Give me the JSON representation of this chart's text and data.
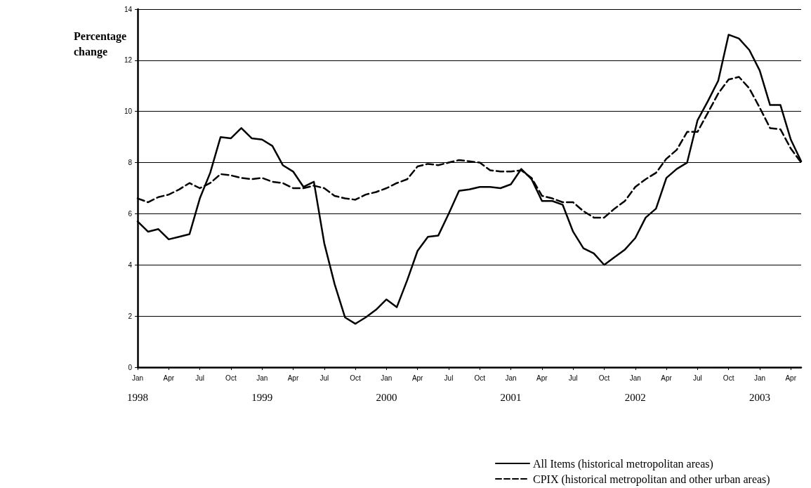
{
  "chart_data": {
    "type": "line",
    "ylabel": "Percentage change",
    "categories": [
      "Jan\n1998",
      null,
      null,
      "Apr",
      null,
      null,
      "Jul",
      null,
      null,
      "Oct",
      null,
      null,
      "Jan\n1999",
      null,
      null,
      "Apr",
      null,
      null,
      "Jul",
      null,
      null,
      "Oct",
      null,
      null,
      "Jan\n2000",
      null,
      null,
      "Apr",
      null,
      null,
      "Jul",
      null,
      null,
      "Oct",
      null,
      null,
      "Jan\n2001",
      null,
      null,
      "Apr",
      null,
      null,
      "Jul",
      null,
      null,
      "Oct",
      null,
      null,
      "Jan\n2002",
      null,
      null,
      "Apr",
      null,
      null,
      "Jul",
      null,
      null,
      "Oct",
      null,
      null,
      "Jan\n2003",
      null,
      null,
      "Apr",
      null
    ],
    "series": [
      {
        "name": "All Items (historical metropolitan areas)",
        "color": "#000000",
        "line_style": "solid",
        "values": [
          5.7,
          5.3,
          5.4,
          5.0,
          5.1,
          5.2,
          6.6,
          7.6,
          9.0,
          8.95,
          9.35,
          8.95,
          8.9,
          8.65,
          7.9,
          7.65,
          7.05,
          7.25,
          4.85,
          3.25,
          1.95,
          1.7,
          1.95,
          2.25,
          2.65,
          2.35,
          3.4,
          4.55,
          5.1,
          5.15,
          6.0,
          6.9,
          6.95,
          7.05,
          7.05,
          7.0,
          7.15,
          7.75,
          7.35,
          6.5,
          6.5,
          6.35,
          5.3,
          4.65,
          4.45,
          4.0,
          4.3,
          4.6,
          5.05,
          5.85,
          6.2,
          7.4,
          7.75,
          8.0,
          9.65,
          10.4,
          11.2,
          13.0,
          12.85,
          12.4,
          11.6,
          10.25,
          10.25,
          8.9,
          8.05
        ]
      },
      {
        "name": "CPIX (historical metropolitan and other urban areas)",
        "color": "#000000",
        "line_style": "dashed",
        "values": [
          6.6,
          6.45,
          6.65,
          6.75,
          6.95,
          7.2,
          7.0,
          7.2,
          7.55,
          7.5,
          7.4,
          7.35,
          7.4,
          7.25,
          7.2,
          7.0,
          7.0,
          7.1,
          7.0,
          6.7,
          6.6,
          6.55,
          6.75,
          6.85,
          7.0,
          7.2,
          7.35,
          7.85,
          7.95,
          7.9,
          8.0,
          8.1,
          8.05,
          8.0,
          7.7,
          7.65,
          7.65,
          7.7,
          7.4,
          6.7,
          6.6,
          6.45,
          6.45,
          6.1,
          5.85,
          5.85,
          6.2,
          6.5,
          7.05,
          7.35,
          7.6,
          8.15,
          8.5,
          9.2,
          9.2,
          9.95,
          10.7,
          11.25,
          11.35,
          10.9,
          10.15,
          9.35,
          9.3,
          8.55,
          8.0
        ]
      }
    ],
    "ylim": [
      0,
      14
    ],
    "yticks": [
      0,
      2,
      4,
      6,
      8,
      10,
      12,
      14
    ],
    "grid": "y",
    "legend": "bottom",
    "marker": "none"
  }
}
